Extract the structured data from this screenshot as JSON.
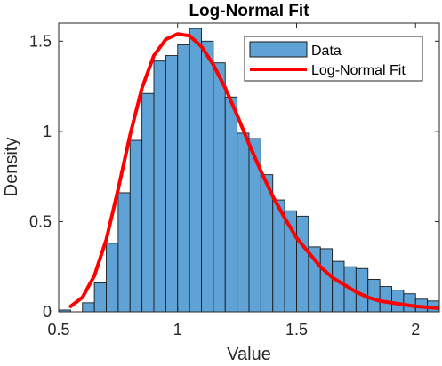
{
  "chart_data": {
    "type": "bar",
    "title": "Log-Normal Fit",
    "xlabel": "Value",
    "ylabel": "Density",
    "xlim": [
      0.5,
      2.1
    ],
    "ylim": [
      0,
      1.6
    ],
    "xticks": [
      "0.5",
      "1",
      "1.5",
      "2"
    ],
    "yticks": [
      "0",
      "0.5",
      "1",
      "1.5"
    ],
    "grid": false,
    "legend": {
      "placement": "top-right",
      "entries": [
        "Data",
        "Log-Normal Fit"
      ]
    },
    "colors": {
      "bars": "#5fa2d6",
      "bar_edge": "#1a1a1a",
      "fit_line": "#ff0000"
    },
    "histogram": {
      "name": "Data",
      "bin_width": 0.05,
      "bin_edges_start": 0.5,
      "values": [
        0.01,
        0.0,
        0.05,
        0.16,
        0.38,
        0.66,
        0.95,
        1.21,
        1.39,
        1.42,
        1.48,
        1.57,
        1.5,
        1.38,
        1.19,
        0.99,
        0.96,
        0.76,
        0.62,
        0.56,
        0.53,
        0.36,
        0.35,
        0.28,
        0.25,
        0.24,
        0.18,
        0.14,
        0.12,
        0.1,
        0.07,
        0.06
      ]
    },
    "fit_line": {
      "name": "Log-Normal Fit",
      "x": [
        0.55,
        0.6,
        0.65,
        0.7,
        0.75,
        0.8,
        0.85,
        0.9,
        0.95,
        1.0,
        1.05,
        1.1,
        1.15,
        1.2,
        1.25,
        1.3,
        1.35,
        1.4,
        1.45,
        1.5,
        1.55,
        1.6,
        1.65,
        1.7,
        1.75,
        1.8,
        1.85,
        1.9,
        1.95,
        2.0,
        2.05,
        2.1
      ],
      "y": [
        0.03,
        0.08,
        0.2,
        0.4,
        0.68,
        0.98,
        1.24,
        1.42,
        1.51,
        1.54,
        1.53,
        1.47,
        1.37,
        1.24,
        1.09,
        0.93,
        0.78,
        0.64,
        0.52,
        0.41,
        0.33,
        0.25,
        0.19,
        0.15,
        0.11,
        0.08,
        0.06,
        0.05,
        0.04,
        0.03,
        0.025,
        0.02
      ]
    }
  }
}
